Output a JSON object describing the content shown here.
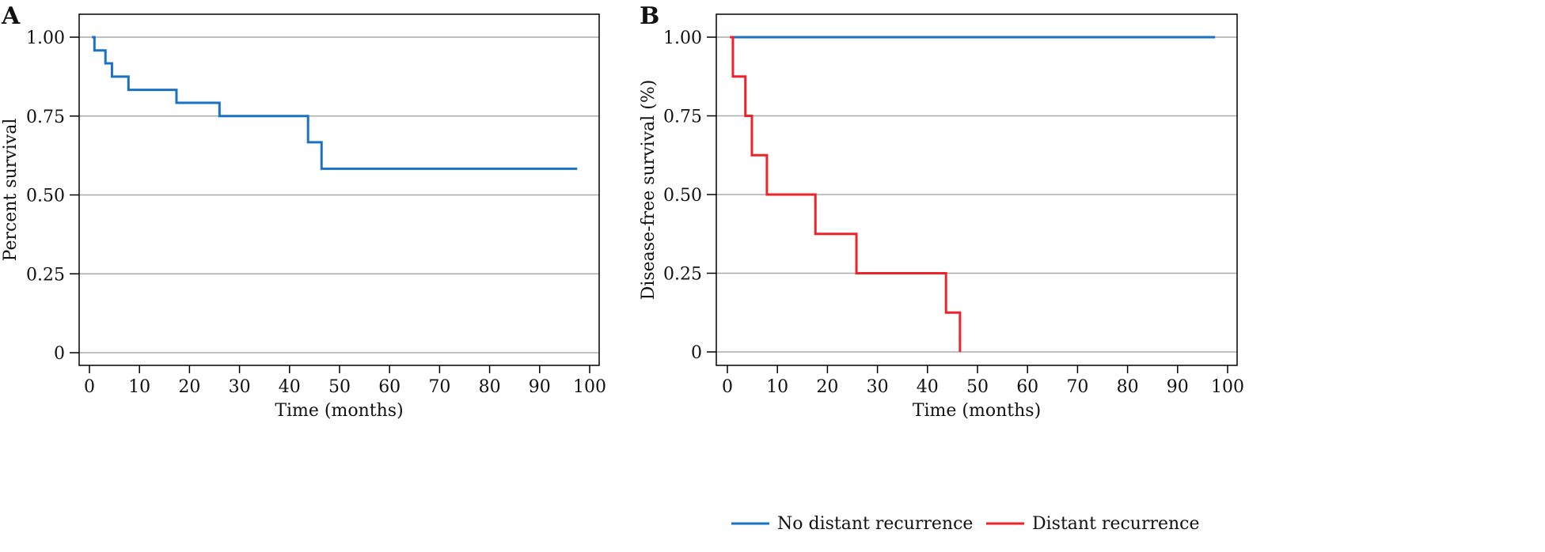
{
  "chart_data": [
    {
      "type": "line",
      "panel_label": "A",
      "xlabel": "Time (months)",
      "ylabel": "Percent survival",
      "xlim": [
        0,
        100
      ],
      "ylim": [
        0,
        1
      ],
      "xticks": [
        "0",
        "10",
        "20",
        "30",
        "40",
        "50",
        "60",
        "70",
        "80",
        "90",
        "100"
      ],
      "yticks": [
        "0",
        "0.25",
        "0.50",
        "0.75",
        "1.00"
      ],
      "grid": "horizontal",
      "step": true,
      "series": [
        {
          "color": "#1a72c2",
          "x": [
            0.5,
            1.0,
            3.2,
            4.5,
            7.8,
            17.4,
            26.0,
            43.7,
            46.4,
            97.5
          ],
          "y": [
            1.0,
            0.958,
            0.917,
            0.875,
            0.833,
            0.792,
            0.75,
            0.667,
            0.583,
            0.583
          ]
        }
      ]
    },
    {
      "type": "line",
      "panel_label": "B",
      "xlabel": "Time (months)",
      "ylabel": "Disease-free survival (%)",
      "xlim": [
        0,
        100
      ],
      "ylim": [
        0,
        1
      ],
      "xticks": [
        "0",
        "10",
        "20",
        "30",
        "40",
        "50",
        "60",
        "70",
        "80",
        "90",
        "100"
      ],
      "yticks": [
        "0",
        "0.25",
        "0.50",
        "0.75",
        "1.00"
      ],
      "grid": "horizontal",
      "step": true,
      "legend": "bottom",
      "series": [
        {
          "name": "No distant recurrence",
          "color": "#1a72c2",
          "x": [
            0.5,
            97.5
          ],
          "y": [
            1.0,
            1.0
          ]
        },
        {
          "name": "Distant recurrence",
          "color": "#ee2229",
          "x": [
            0.5,
            1.1,
            3.6,
            4.9,
            7.9,
            17.6,
            25.8,
            43.7,
            46.5
          ],
          "y": [
            1.0,
            0.875,
            0.75,
            0.625,
            0.5,
            0.375,
            0.25,
            0.125,
            0.0
          ]
        }
      ]
    }
  ]
}
